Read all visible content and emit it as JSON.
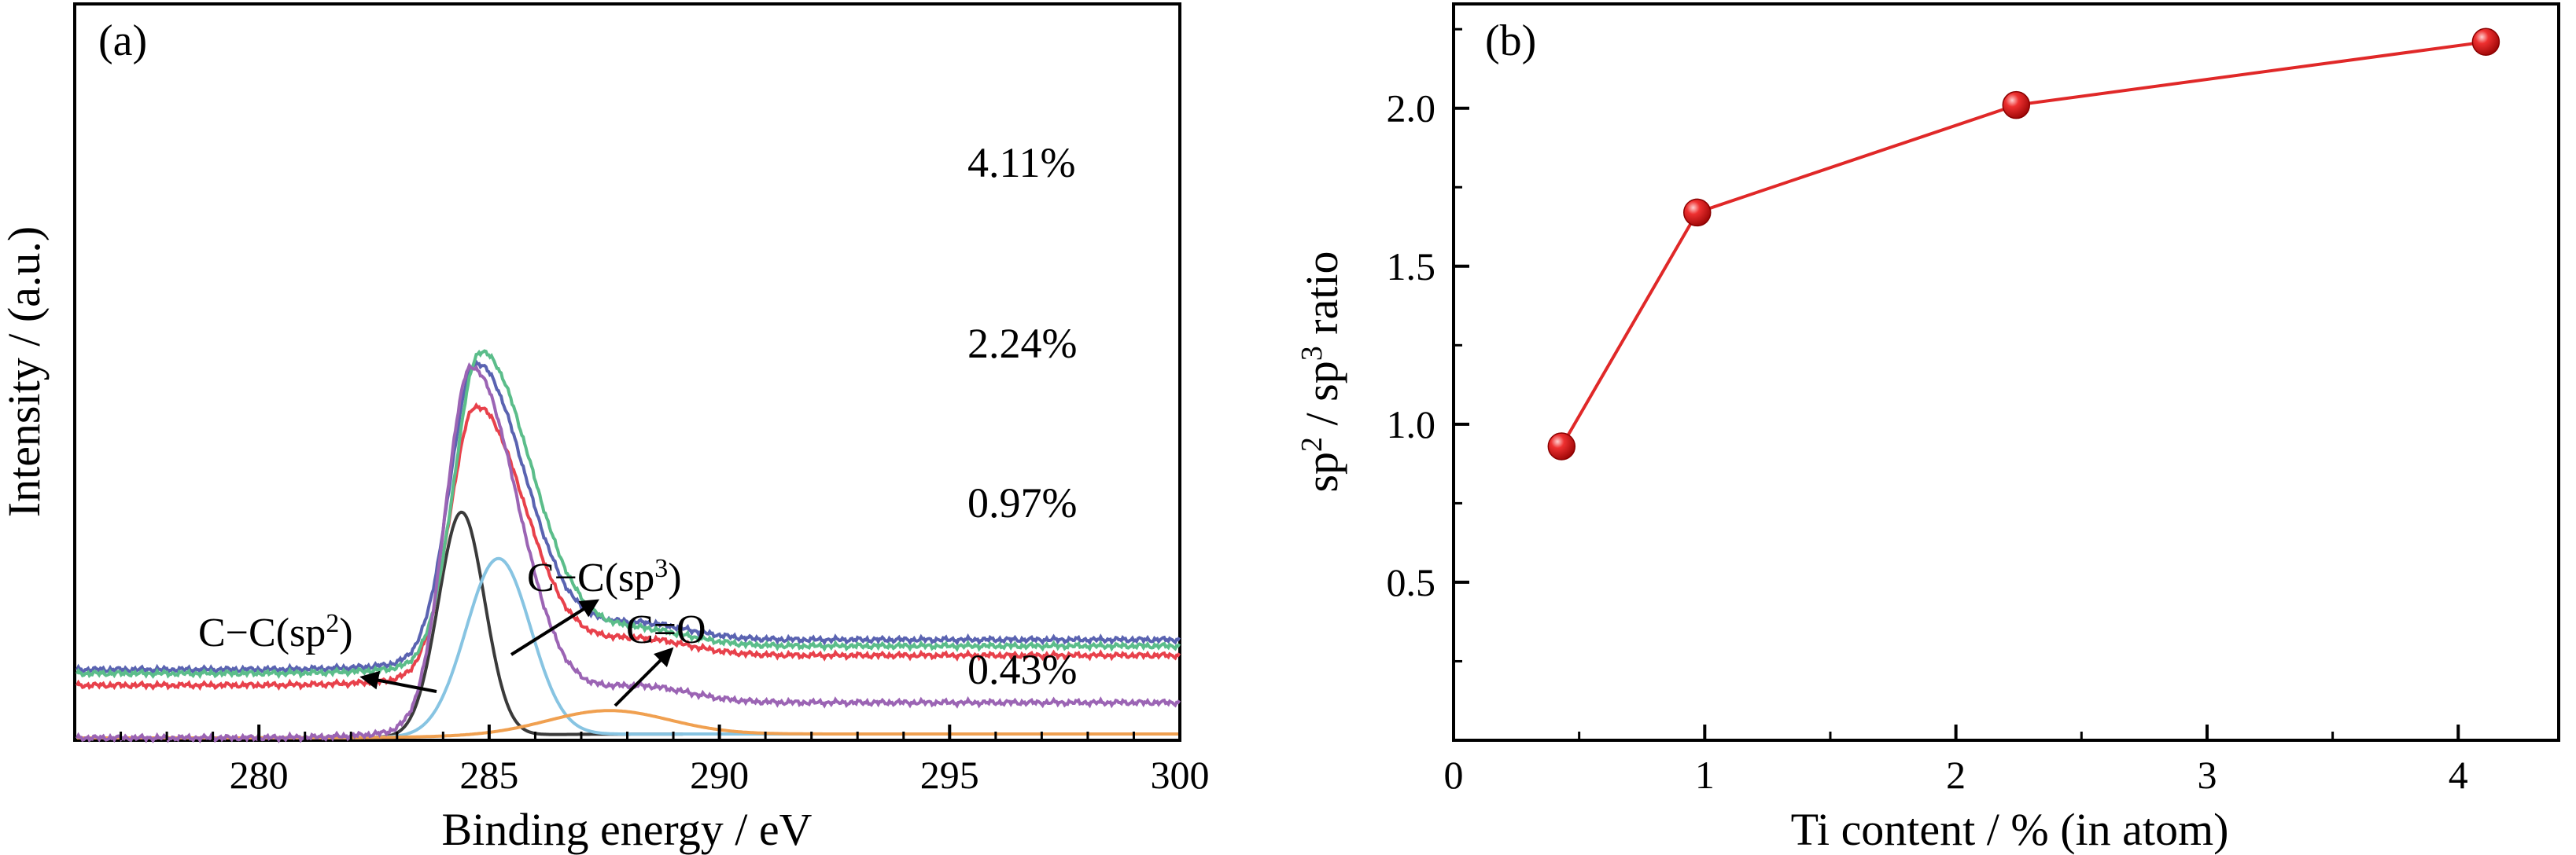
{
  "chart_data": [
    {
      "panel": "(a)",
      "type": "line",
      "xlabel": "Binding energy / eV",
      "ylabel": "Intensity / (a.u.)",
      "xlim": [
        276,
        300
      ],
      "x_ticks": [
        280,
        285,
        290,
        295,
        300
      ],
      "y_ticks_shown": false,
      "series": [
        {
          "name": "4.11%",
          "color": "#e8414b",
          "baseline": 0.7,
          "peak_center": 284.7,
          "peak_height": 3.35,
          "sigma_left": 0.55,
          "sigma_right": 1.05,
          "tail": 0.33
        },
        {
          "name": "2.24%",
          "color": "#5a63b1",
          "baseline": 0.9,
          "peak_center": 284.7,
          "peak_height": 3.7,
          "sigma_left": 0.55,
          "sigma_right": 1.05,
          "tail": 0.33
        },
        {
          "name": "0.97%",
          "color": "#5bbd8a",
          "baseline": 0.85,
          "peak_center": 284.8,
          "peak_height": 3.9,
          "sigma_left": 0.55,
          "sigma_right": 1.1,
          "tail": 0.3
        },
        {
          "name": "0.43%",
          "color": "#9b64b4",
          "baseline": 0.03,
          "peak_center": 284.6,
          "peak_height": 4.5,
          "sigma_left": 0.55,
          "sigma_right": 1.0,
          "tail": 0.4
        }
      ],
      "components": [
        {
          "label": "C−C(sp2)",
          "color": "#3a3a3a",
          "center": 284.4,
          "height": 2.85,
          "sigma": 0.5
        },
        {
          "label": "C−C(sp3)",
          "color": "#87c4e2",
          "center": 285.2,
          "height": 2.25,
          "sigma": 0.7
        },
        {
          "label": "C=O",
          "color": "#f0a050",
          "center": 287.6,
          "height": 0.3,
          "sigma": 1.3
        }
      ],
      "annotations": {
        "sp2_main": "C−C(sp",
        "sp2_sup": "2",
        "sp2_close": ")",
        "sp3_main": "C−C(sp",
        "sp3_sup": "3",
        "sp3_close": ")",
        "co": "C=O"
      },
      "labels": {
        "p1": "4.11%",
        "p2": "2.24%",
        "p3": "0.97%",
        "p4": "0.43%"
      }
    },
    {
      "panel": "(b)",
      "type": "line",
      "xlabel": "Ti content / % (in atom)",
      "ylabel_parts": [
        "sp",
        "2",
        " / sp",
        "3",
        " ratio"
      ],
      "xlim": [
        0,
        4.4
      ],
      "ylim": [
        0,
        2.33
      ],
      "x_ticks": [
        0,
        1,
        2,
        3,
        4
      ],
      "y_ticks": [
        0.5,
        1.0,
        1.5,
        2.0
      ],
      "y_tick_labels": [
        "0.5",
        "1.0",
        "1.5",
        "2.0"
      ],
      "x": [
        0.43,
        0.97,
        2.24,
        4.11
      ],
      "y": [
        0.93,
        1.67,
        2.01,
        2.21
      ],
      "color": "#e02828"
    }
  ]
}
